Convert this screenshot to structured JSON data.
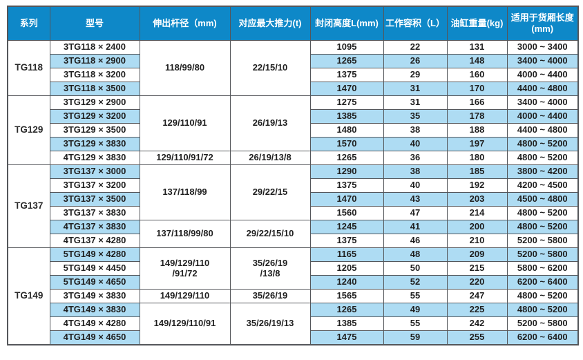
{
  "colors": {
    "header_bg": "#0e88c8",
    "stripe_bg": "#aedcf3",
    "border": "#54565a",
    "header_text": "#ffffff",
    "cell_text": "#1f1f1f"
  },
  "table": {
    "headers": [
      "系列",
      "型号",
      "伸出杆径（mm)",
      "对应最大推力(t)",
      "封闭高度L(mm)",
      "工作容积（L）",
      "油缸重量(kg)",
      "适用于货厢长度\n(mm)"
    ],
    "groups": [
      {
        "series": "TG118",
        "subgroups": [
          {
            "rod": "118/99/80",
            "thrust": "22/15/10",
            "rows": [
              {
                "model": "3TG118 × 2400",
                "height": "1095",
                "volume": "22",
                "weight": "131",
                "range": "3000 ~ 3400"
              },
              {
                "model": "3TG118 × 2900",
                "height": "1265",
                "volume": "26",
                "weight": "148",
                "range": "3400 ~ 4000"
              },
              {
                "model": "3TG118 × 3200",
                "height": "1375",
                "volume": "29",
                "weight": "160",
                "range": "4000 ~ 4400"
              },
              {
                "model": "3TG118 × 3500",
                "height": "1470",
                "volume": "31",
                "weight": "170",
                "range": "4400 ~ 4800"
              }
            ]
          }
        ]
      },
      {
        "series": "TG129",
        "subgroups": [
          {
            "rod": "129/110/91",
            "thrust": "26/19/13",
            "rows": [
              {
                "model": "3TG129 × 2900",
                "height": "1275",
                "volume": "31",
                "weight": "166",
                "range": "3400 ~ 4000"
              },
              {
                "model": "3TG129 × 3200",
                "height": "1385",
                "volume": "35",
                "weight": "178",
                "range": "4000 ~ 4400"
              },
              {
                "model": "3TG129 × 3500",
                "height": "1480",
                "volume": "38",
                "weight": "188",
                "range": "4400 ~ 4800"
              },
              {
                "model": "3TG129 × 3830",
                "height": "1570",
                "volume": "40",
                "weight": "197",
                "range": "4800 ~ 5200"
              }
            ]
          },
          {
            "rod": "129/110/91/72",
            "thrust": "26/19/13/8",
            "rows": [
              {
                "model": "4TG129 × 3830",
                "height": "1265",
                "volume": "36",
                "weight": "180",
                "range": "4800 ~ 5200"
              }
            ]
          }
        ]
      },
      {
        "series": "TG137",
        "subgroups": [
          {
            "rod": "137/118/99",
            "thrust": "29/22/15",
            "rows": [
              {
                "model": "3TG137 × 3000",
                "height": "1290",
                "volume": "38",
                "weight": "185",
                "range": "3800 ~ 4200"
              },
              {
                "model": "3TG137 × 3200",
                "height": "1375",
                "volume": "40",
                "weight": "192",
                "range": "4200 ~ 4500"
              },
              {
                "model": "3TG137 × 3500",
                "height": "1470",
                "volume": "43",
                "weight": "203",
                "range": "4500 ~ 4800"
              },
              {
                "model": "3TG137 × 3830",
                "height": "1560",
                "volume": "47",
                "weight": "214",
                "range": "4800 ~ 5200"
              }
            ]
          },
          {
            "rod": "137/118/99/80",
            "thrust": "29/22/15/10",
            "rows": [
              {
                "model": "4TG137 × 3830",
                "height": "1245",
                "volume": "41",
                "weight": "200",
                "range": "4800 ~ 5200"
              },
              {
                "model": "4TG137 × 4280",
                "height": "1375",
                "volume": "46",
                "weight": "210",
                "range": "5200 ~ 5800"
              }
            ]
          }
        ]
      },
      {
        "series": "TG149",
        "subgroups": [
          {
            "rod": "149/129/110\n/91/72",
            "thrust": "35/26/19\n/13/8",
            "rows": [
              {
                "model": "5TG149 × 4280",
                "height": "1165",
                "volume": "48",
                "weight": "209",
                "range": "5200 ~ 5800"
              },
              {
                "model": "5TG149 × 4450",
                "height": "1205",
                "volume": "50",
                "weight": "215",
                "range": "5800 ~ 6200"
              },
              {
                "model": "5TG149 × 4650",
                "height": "1240",
                "volume": "52",
                "weight": "220",
                "range": "6200 ~ 6400"
              }
            ]
          },
          {
            "rod": "149/129/110",
            "thrust": "35/26/19",
            "rows": [
              {
                "model": "3TG149 × 3830",
                "height": "1565",
                "volume": "55",
                "weight": "247",
                "range": "4800 ~ 5200"
              }
            ]
          },
          {
            "rod": "149/129/110/91",
            "thrust": "35/26/19/13",
            "rows": [
              {
                "model": "4TG149 × 3830",
                "height": "1265",
                "volume": "49",
                "weight": "225",
                "range": "4800 ~ 5200"
              },
              {
                "model": "4TG149 × 4280",
                "height": "1385",
                "volume": "55",
                "weight": "242",
                "range": "5200 ~ 5800"
              },
              {
                "model": "4TG149 × 4650",
                "height": "1475",
                "volume": "59",
                "weight": "255",
                "range": "6200 ~ 6400"
              }
            ]
          }
        ]
      }
    ]
  }
}
